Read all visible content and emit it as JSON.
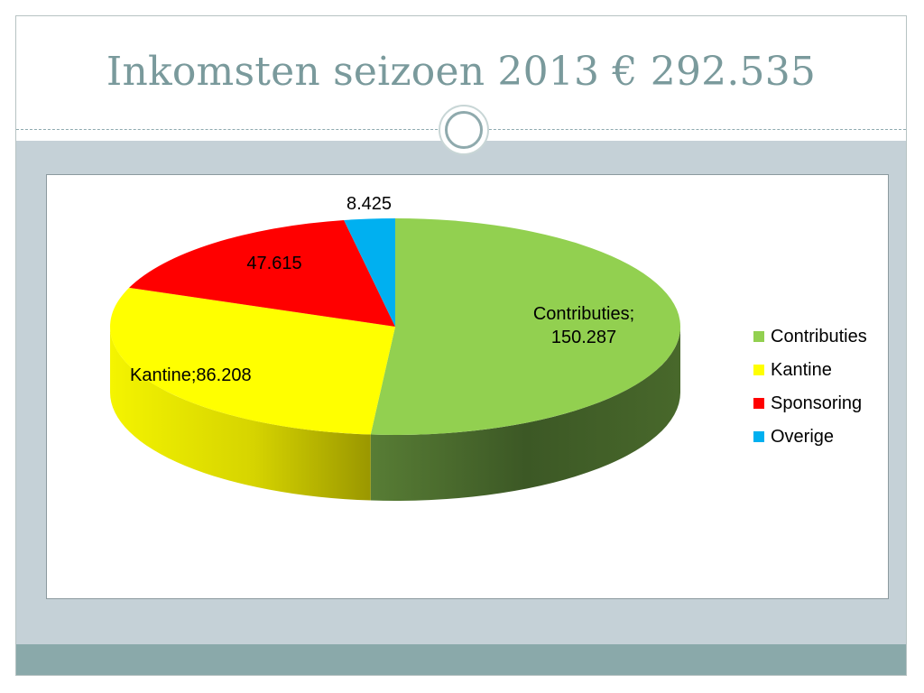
{
  "slide": {
    "title": "Inkomsten seizoen 2013 € 292.535"
  },
  "chart_data": {
    "type": "pie",
    "title": "",
    "series": [
      {
        "name": "Contributies",
        "value": 150287,
        "label": "Contributies;",
        "value_label": "150.287",
        "color": "#92d050"
      },
      {
        "name": "Kantine",
        "value": 86208,
        "label": "Kantine;",
        "value_label": "86.208",
        "color": "#ffff00"
      },
      {
        "name": "Sponsoring",
        "value": 47615,
        "label": "",
        "value_label": "47.615",
        "color": "#ff0000"
      },
      {
        "name": "Overige",
        "value": 8425,
        "label": "",
        "value_label": "8.425",
        "color": "#00b0f0"
      }
    ],
    "legend_position": "right",
    "style": "3d"
  }
}
